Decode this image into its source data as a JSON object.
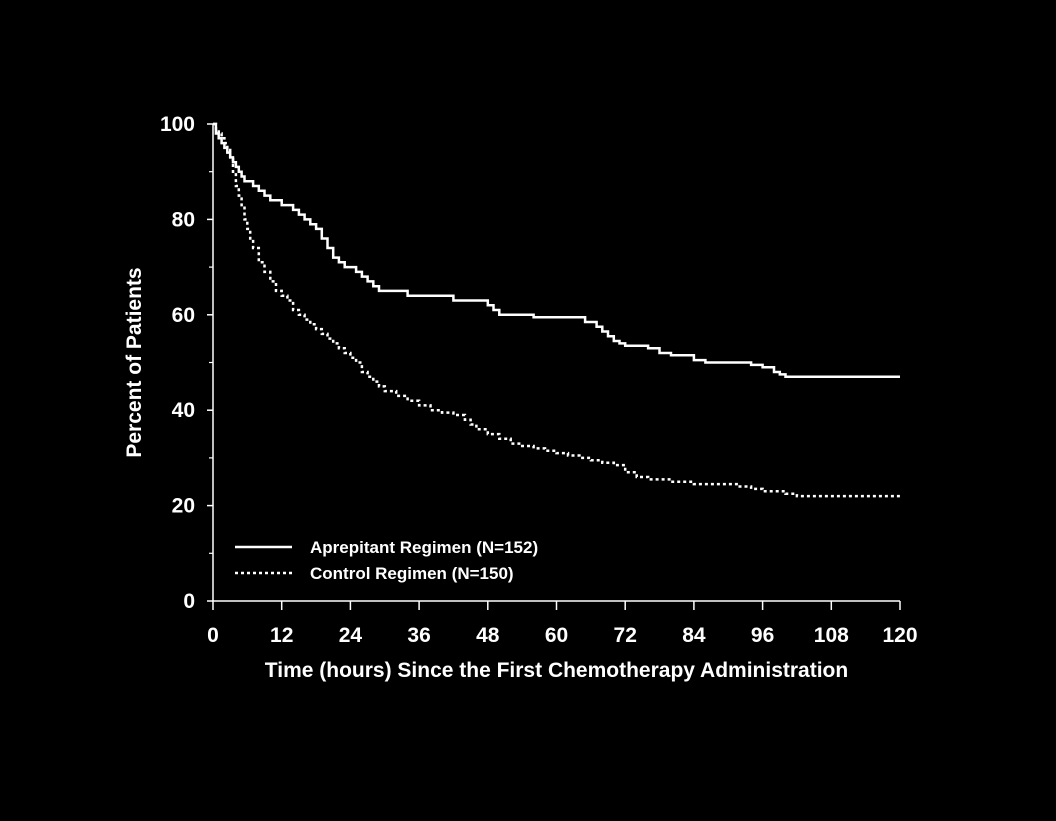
{
  "colors": {
    "background": "#000000",
    "foreground": "#ffffff"
  },
  "chart_data": {
    "type": "line",
    "subtype": "kaplan-meier step curves",
    "title": "",
    "xlabel": "Time (hours) Since the First Chemotherapy Administration",
    "ylabel": "Percent of Patients",
    "xlim": [
      0,
      120
    ],
    "ylim": [
      0,
      100
    ],
    "xticks": [
      0,
      12,
      24,
      36,
      48,
      60,
      72,
      84,
      96,
      108,
      120
    ],
    "yticks": [
      0,
      20,
      40,
      60,
      80,
      100
    ],
    "grid": false,
    "legend_position": "bottom-left",
    "series": [
      {
        "name": "Aprepitant Regimen (N=152)",
        "line_style": "solid",
        "x": [
          0,
          0.5,
          1,
          1.5,
          2,
          2.5,
          3,
          3.5,
          4,
          4.5,
          5,
          5.5,
          6,
          7,
          8,
          9,
          10,
          12,
          13,
          14,
          15,
          16,
          17,
          18,
          19,
          20,
          21,
          22,
          23,
          24,
          25,
          26,
          27,
          28,
          29,
          30,
          32,
          34,
          35,
          36,
          40,
          42,
          46,
          48,
          49,
          50,
          52,
          54,
          56,
          60,
          64,
          65,
          67,
          68,
          69,
          70,
          71,
          72,
          74,
          76,
          78,
          80,
          84,
          86,
          88,
          90,
          92,
          94,
          95,
          96,
          97,
          98,
          99,
          100,
          102,
          108,
          110,
          115,
          120
        ],
        "y": [
          100,
          98,
          97,
          96,
          95,
          94,
          93,
          92,
          91,
          90,
          89,
          88,
          88,
          87,
          86,
          85,
          84,
          83,
          83,
          82,
          81,
          80,
          79,
          78,
          76,
          74,
          72,
          71,
          70,
          70,
          69,
          68,
          67,
          66,
          65,
          65,
          65,
          64,
          64,
          64,
          64,
          63,
          63,
          62,
          61,
          60,
          60,
          60,
          59.5,
          59.5,
          59.5,
          58.5,
          57.5,
          56.5,
          55.5,
          54.5,
          54,
          53.5,
          53.5,
          53,
          52,
          51.5,
          50.5,
          50,
          50,
          50,
          50,
          49.5,
          49.5,
          49,
          49,
          48,
          47.5,
          47,
          47,
          47,
          47,
          47,
          47
        ]
      },
      {
        "name": "Control Regimen (N=150)",
        "line_style": "dotted",
        "x": [
          0,
          0.5,
          1,
          1.5,
          2,
          2.5,
          3,
          3.5,
          4,
          4.5,
          5,
          5.5,
          6,
          6.5,
          7,
          8,
          9,
          10,
          11,
          12,
          13,
          14,
          15,
          16,
          17,
          18,
          19,
          20,
          21,
          22,
          23,
          24,
          25,
          26,
          27,
          28,
          29,
          30,
          32,
          34,
          36,
          38,
          40,
          42,
          44,
          45,
          46,
          48,
          50,
          52,
          54,
          56,
          58,
          60,
          62,
          64,
          66,
          68,
          70,
          72,
          74,
          76,
          78,
          80,
          84,
          88,
          92,
          94,
          96,
          100,
          102,
          108,
          120
        ],
        "y": [
          100,
          99,
          98,
          97,
          96,
          95,
          93,
          90,
          87,
          85,
          83,
          80,
          78,
          76,
          74,
          71,
          69,
          67,
          65,
          64,
          63,
          61,
          60,
          59,
          58,
          57,
          56,
          55,
          54,
          53,
          52,
          51,
          50,
          48,
          47,
          46,
          45,
          44,
          43,
          42,
          41,
          40,
          39.5,
          39,
          38,
          37,
          36,
          35,
          34,
          33,
          32.5,
          32,
          31.5,
          31,
          30.5,
          30,
          29.5,
          29,
          28.5,
          27,
          26,
          25.5,
          25.5,
          25,
          24.5,
          24.5,
          24,
          23.5,
          23,
          22.5,
          22,
          22,
          22
        ]
      }
    ]
  }
}
